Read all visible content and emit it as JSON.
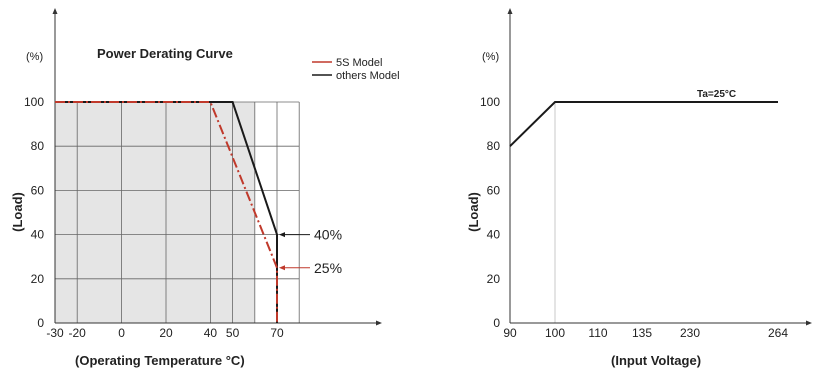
{
  "chart_data": [
    {
      "type": "line",
      "title": "Power Derating Curve",
      "ylabel": "(Load)",
      "yunit": "(%)",
      "xlabel": "(Operating Temperature °C)",
      "x_ticks": [
        "-30",
        "-20",
        "0",
        "20",
        "40",
        "50",
        "70"
      ],
      "y_ticks": [
        "0",
        "20",
        "40",
        "60",
        "80",
        "100"
      ],
      "xlim": [
        -30,
        80
      ],
      "ylim": [
        0,
        100
      ],
      "grid": true,
      "legend_position": "top-right",
      "series": [
        {
          "name": "others Model",
          "color": "#1a1a1a",
          "style": "solid",
          "x": [
            -30,
            50,
            70,
            70
          ],
          "y": [
            100,
            100,
            40,
            0
          ]
        },
        {
          "name": "5S Model",
          "color": "#c0392b",
          "style": "dashed",
          "x": [
            -30,
            40,
            70,
            70
          ],
          "y": [
            100,
            100,
            25,
            0
          ]
        }
      ],
      "annotations": [
        {
          "text": "40%",
          "x": 70,
          "y": 40,
          "color": "#1a1a1a"
        },
        {
          "text": "25%",
          "x": 70,
          "y": 25,
          "color": "#c0392b"
        }
      ]
    },
    {
      "type": "line",
      "title": "",
      "ylabel": "(Load)",
      "yunit": "(%)",
      "xlabel": "(Input Voltage)",
      "x_ticks": [
        "90",
        "100",
        "110",
        "135",
        "230",
        "264"
      ],
      "y_ticks": [
        "0",
        "20",
        "40",
        "60",
        "80",
        "100"
      ],
      "ylim": [
        0,
        100
      ],
      "series": [
        {
          "color": "#1a1a1a",
          "x": [
            "90",
            "100",
            "264"
          ],
          "y": [
            80,
            100,
            100
          ]
        }
      ],
      "annotations": [
        {
          "text": "Ta=25°C",
          "x": "230",
          "y": 100
        }
      ]
    }
  ]
}
